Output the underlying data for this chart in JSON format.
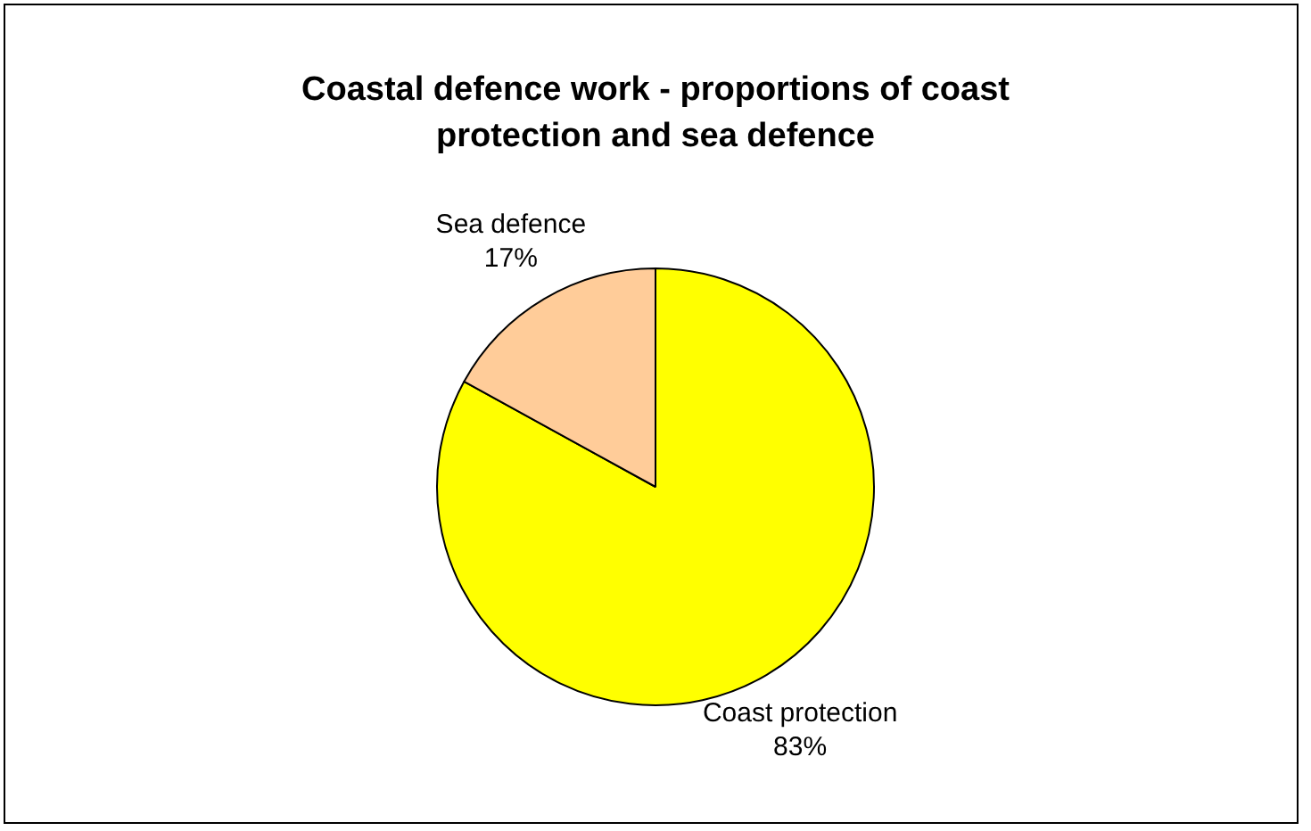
{
  "chart_data": {
    "type": "pie",
    "title": "Coastal defence work - proportions of coast protection and sea defence",
    "categories": [
      "Coast protection",
      "Sea defence"
    ],
    "values": [
      83,
      17
    ],
    "colors": [
      "#ffff00",
      "#ffcc99"
    ],
    "value_labels": [
      "83%",
      "17%"
    ],
    "legend": false
  }
}
